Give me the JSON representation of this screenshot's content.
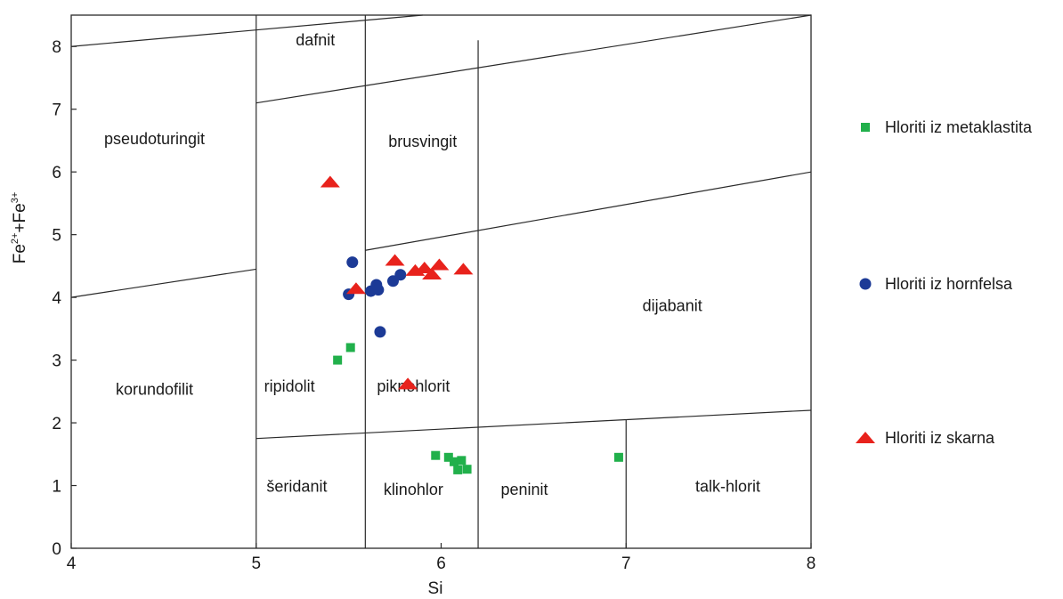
{
  "chart_data": {
    "type": "scatter",
    "xlabel": "Si",
    "ylabel": "Fe2+ + Fe3+",
    "ylabel_parts": {
      "main": "Fe",
      "sup1": "2+",
      "plus": "+Fe",
      "sup2": "3+"
    },
    "xlim": [
      4,
      8
    ],
    "ylim": [
      0,
      8.5
    ],
    "x_ticks": [
      4,
      5,
      6,
      7,
      8
    ],
    "y_ticks": [
      0,
      1,
      2,
      3,
      4,
      5,
      6,
      7,
      8
    ],
    "grid": false,
    "legend_position": "right",
    "boundaries": [
      {
        "x": [
          4,
          5.9
        ],
        "y": [
          8.0,
          8.5
        ]
      },
      {
        "x": [
          5,
          8
        ],
        "y": [
          7.1,
          8.5
        ]
      },
      {
        "x": [
          4,
          5
        ],
        "y": [
          4.0,
          4.45
        ]
      },
      {
        "x": [
          5.59,
          8
        ],
        "y": [
          4.75,
          6.0
        ]
      },
      {
        "x": [
          5,
          8
        ],
        "y": [
          1.75,
          2.2
        ]
      },
      {
        "x": [
          5,
          5
        ],
        "y": [
          0,
          8.5
        ]
      },
      {
        "x": [
          5.59,
          5.59
        ],
        "y": [
          0,
          8.5
        ]
      },
      {
        "x": [
          6.2,
          6.2
        ],
        "y": [
          0,
          8.1
        ]
      },
      {
        "x": [
          7,
          7
        ],
        "y": [
          0,
          2.05
        ]
      }
    ],
    "fields": [
      {
        "label": "dafnit",
        "x": 5.32,
        "y": 8.02
      },
      {
        "label": "pseudoturingit",
        "x": 4.45,
        "y": 6.44
      },
      {
        "label": "brusvingit",
        "x": 5.9,
        "y": 6.4
      },
      {
        "label": "dijabanit",
        "x": 7.25,
        "y": 3.78
      },
      {
        "label": "korundofilit",
        "x": 4.45,
        "y": 2.45
      },
      {
        "label": "ripidolit",
        "x": 5.18,
        "y": 2.5
      },
      {
        "label": "piknohlorit",
        "x": 5.85,
        "y": 2.5
      },
      {
        "label": "šeridanit",
        "x": 5.22,
        "y": 0.9
      },
      {
        "label": "klinohlor",
        "x": 5.85,
        "y": 0.85
      },
      {
        "label": "peninit",
        "x": 6.45,
        "y": 0.85
      },
      {
        "label": "talk-hlorit",
        "x": 7.55,
        "y": 0.9
      }
    ],
    "series": [
      {
        "name": "Hloriti iz metaklastita",
        "marker": "square",
        "color": "#21b04b",
        "points": [
          [
            5.44,
            3.0
          ],
          [
            5.51,
            3.2
          ],
          [
            5.97,
            1.48
          ],
          [
            6.04,
            1.45
          ],
          [
            6.07,
            1.38
          ],
          [
            6.09,
            1.25
          ],
          [
            6.11,
            1.4
          ],
          [
            6.14,
            1.26
          ],
          [
            6.96,
            1.45
          ]
        ]
      },
      {
        "name": "Hloriti iz hornfelsa",
        "marker": "circle",
        "color": "#1c3a96",
        "points": [
          [
            5.52,
            4.56
          ],
          [
            5.5,
            4.05
          ],
          [
            5.62,
            4.1
          ],
          [
            5.65,
            4.2
          ],
          [
            5.66,
            4.12
          ],
          [
            5.67,
            3.45
          ],
          [
            5.74,
            4.26
          ],
          [
            5.78,
            4.36
          ]
        ]
      },
      {
        "name": "Hloriti iz skarna",
        "marker": "triangle",
        "color": "#e8221c",
        "points": [
          [
            5.4,
            5.84
          ],
          [
            5.54,
            4.14
          ],
          [
            5.75,
            4.59
          ],
          [
            5.86,
            4.43
          ],
          [
            5.91,
            4.47
          ],
          [
            5.95,
            4.37
          ],
          [
            5.99,
            4.52
          ],
          [
            6.12,
            4.45
          ],
          [
            5.82,
            2.62
          ]
        ]
      }
    ]
  }
}
